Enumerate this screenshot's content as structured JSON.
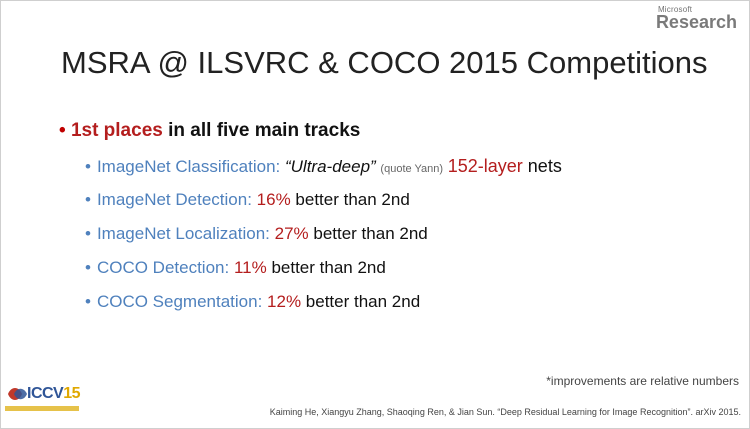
{
  "brand": {
    "microsoft": "Microsoft",
    "research": "Research",
    "iccv": "ICCV",
    "iccv_year": "15"
  },
  "title": "MSRA @ ILSVRC & COCO 2015 Competitions",
  "main_bullet": {
    "bullet": "•",
    "highlight": "1st places",
    "rest": " in all five main tracks"
  },
  "items": [
    {
      "label": "ImageNet Classification: ",
      "quote": "“Ultra-deep”",
      "note": "(quote Yann)",
      "stat": "152-layer",
      "rest": " nets"
    },
    {
      "label": "ImageNet Detection: ",
      "stat": "16%",
      "rest": " better than 2nd"
    },
    {
      "label": "ImageNet Localization: ",
      "stat": "27%",
      "rest": " better than 2nd"
    },
    {
      "label": "COCO Detection: ",
      "stat": "11%",
      "rest": " better than 2nd"
    },
    {
      "label": "COCO Segmentation: ",
      "stat": "12%",
      "rest": " better than 2nd"
    }
  ],
  "footnote": "*improvements are relative numbers",
  "citation": "Kaiming He, Xiangyu Zhang, Shaoqing Ren, & Jian Sun. “Deep Residual Learning for Image Recognition”. arXiv 2015.",
  "colors": {
    "accent_red": "#b41e1e",
    "accent_blue": "#4f81bd"
  }
}
